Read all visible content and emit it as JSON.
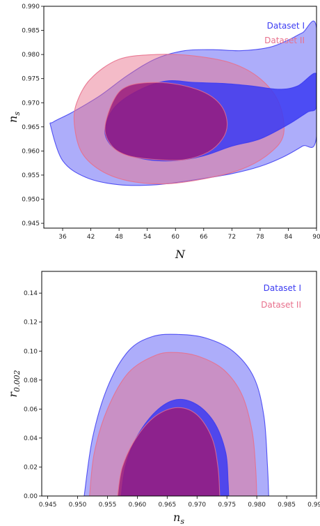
{
  "colors": {
    "dataset1": "#3b3bf2",
    "dataset2": "#e8708c",
    "overlap": "#9b1a78"
  },
  "chart_data": [
    {
      "type": "contour",
      "xlabel": "N",
      "ylabel": "n",
      "ylabel_sub": "s",
      "xlim": [
        32,
        90
      ],
      "ylim": [
        0.944,
        0.99
      ],
      "xticks": [
        "36",
        "42",
        "48",
        "54",
        "60",
        "66",
        "72",
        "78",
        "84",
        "90"
      ],
      "yticks": [
        "0.945",
        "0.950",
        "0.955",
        "0.960",
        "0.965",
        "0.970",
        "0.975",
        "0.980",
        "0.985",
        "0.990"
      ],
      "legend": {
        "position": "top-right",
        "entries": [
          "Dataset I",
          "Dataset II"
        ]
      },
      "series": [
        {
          "name": "Dataset I",
          "contours": [
            {
              "level": "95%",
              "points": [
                [
                  33.5,
                  0.965
                ],
                [
                  36,
                  0.958
                ],
                [
                  41,
                  0.9545
                ],
                [
                  48,
                  0.953
                ],
                [
                  56,
                  0.953
                ],
                [
                  64,
                  0.954
                ],
                [
                  72,
                  0.9553
                ],
                [
                  78,
                  0.9568
                ],
                [
                  83,
                  0.9588
                ],
                [
                  87,
                  0.961
                ],
                [
                  90,
                  0.963
                ],
                [
                  90,
                  0.9855
                ],
                [
                  87,
                  0.9845
                ],
                [
                  84,
                  0.983
                ],
                [
                  80,
                  0.9815
                ],
                [
                  74,
                  0.9808
                ],
                [
                  68,
                  0.981
                ],
                [
                  62,
                  0.9808
                ],
                [
                  56,
                  0.9792
                ],
                [
                  50,
                  0.9758
                ],
                [
                  44,
                  0.9715
                ],
                [
                  38,
                  0.968
                ],
                [
                  34,
                  0.966
                ]
              ]
            },
            {
              "level": "68%",
              "points": [
                [
                  45,
                  0.9645
                ],
                [
                  46,
                  0.9615
                ],
                [
                  49,
                  0.9595
                ],
                [
                  54,
                  0.9582
                ],
                [
                  60,
                  0.958
                ],
                [
                  66,
                  0.959
                ],
                [
                  72,
                  0.961
                ],
                [
                  78,
                  0.9625
                ],
                [
                  84,
                  0.9655
                ],
                [
                  88,
                  0.968
                ],
                [
                  90,
                  0.9692
                ],
                [
                  90,
                  0.976
                ],
                [
                  86,
                  0.9735
                ],
                [
                  82,
                  0.9728
                ],
                [
                  76,
                  0.9735
                ],
                [
                  70,
                  0.974
                ],
                [
                  64,
                  0.9742
                ],
                [
                  58,
                  0.9745
                ],
                [
                  52,
                  0.9725
                ],
                [
                  47,
                  0.969
                ]
              ]
            }
          ]
        },
        {
          "name": "Dataset II",
          "contours": [
            {
              "level": "95%",
              "points": [
                [
                  38.5,
                  0.9655
                ],
                [
                  40,
                  0.9598
                ],
                [
                  44,
                  0.956
                ],
                [
                  50,
                  0.9538
                ],
                [
                  58,
                  0.9532
                ],
                [
                  66,
                  0.9542
                ],
                [
                  74,
                  0.9562
                ],
                [
                  80,
                  0.9595
                ],
                [
                  83,
                  0.9635
                ],
                [
                  82,
                  0.97
                ],
                [
                  78,
                  0.975
                ],
                [
                  72,
                  0.9782
                ],
                [
                  64,
                  0.9797
                ],
                [
                  56,
                  0.98
                ],
                [
                  48,
                  0.979
                ],
                [
                  42,
                  0.975
                ],
                [
                  39,
                  0.97
                ]
              ]
            },
            {
              "level": "68%",
              "points": [
                [
                  45,
                  0.9648
                ],
                [
                  46.5,
                  0.961
                ],
                [
                  50,
                  0.959
                ],
                [
                  56,
                  0.9582
                ],
                [
                  62,
                  0.9582
                ],
                [
                  67,
                  0.9598
                ],
                [
                  70,
                  0.9625
                ],
                [
                  71,
                  0.9655
                ],
                [
                  70,
                  0.969
                ],
                [
                  67,
                  0.9717
                ],
                [
                  62,
                  0.9735
                ],
                [
                  56,
                  0.9742
                ],
                [
                  50,
                  0.9735
                ],
                [
                  47,
                  0.9708
                ]
              ]
            }
          ]
        }
      ]
    },
    {
      "type": "contour",
      "xlabel": "n",
      "xlabel_sub": "s",
      "ylabel": "r",
      "ylabel_sub": "0.002",
      "xlim": [
        0.944,
        0.99
      ],
      "ylim": [
        0.0,
        0.155
      ],
      "xticks": [
        "0.945",
        "0.950",
        "0.955",
        "0.960",
        "0.965",
        "0.970",
        "0.975",
        "0.980",
        "0.985",
        "0.990"
      ],
      "yticks": [
        "0.00",
        "0.02",
        "0.04",
        "0.06",
        "0.08",
        "0.10",
        "0.12",
        "0.14"
      ],
      "legend": {
        "position": "top-right",
        "entries": [
          "Dataset I",
          "Dataset II"
        ]
      },
      "series": [
        {
          "name": "Dataset I",
          "contours": [
            {
              "level": "95%",
              "points": [
                [
                  0.9511,
                  0.0
                ],
                [
                  0.9525,
                  0.04
                ],
                [
                  0.955,
                  0.075
                ],
                [
                  0.9585,
                  0.1
                ],
                [
                  0.9625,
                  0.11
                ],
                [
                  0.967,
                  0.1115
                ],
                [
                  0.9715,
                  0.109
                ],
                [
                  0.976,
                  0.1
                ],
                [
                  0.9795,
                  0.082
                ],
                [
                  0.9812,
                  0.055
                ],
                [
                  0.9818,
                  0.02
                ],
                [
                  0.982,
                  0.0
                ]
              ]
            },
            {
              "level": "68%",
              "points": [
                [
                  0.9573,
                  0.0
                ],
                [
                  0.958,
                  0.02
                ],
                [
                  0.9598,
                  0.04
                ],
                [
                  0.963,
                  0.058
                ],
                [
                  0.9665,
                  0.0665
                ],
                [
                  0.97,
                  0.063
                ],
                [
                  0.973,
                  0.05
                ],
                [
                  0.9748,
                  0.03
                ],
                [
                  0.9752,
                  0.01
                ],
                [
                  0.9753,
                  0.0
                ]
              ]
            }
          ]
        },
        {
          "name": "Dataset II",
          "contours": [
            {
              "level": "95%",
              "points": [
                [
                  0.952,
                  0.0
                ],
                [
                  0.9528,
                  0.03
                ],
                [
                  0.955,
                  0.06
                ],
                [
                  0.9585,
                  0.085
                ],
                [
                  0.963,
                  0.097
                ],
                [
                  0.9665,
                  0.099
                ],
                [
                  0.9705,
                  0.096
                ],
                [
                  0.9745,
                  0.087
                ],
                [
                  0.9775,
                  0.07
                ],
                [
                  0.9792,
                  0.045
                ],
                [
                  0.9798,
                  0.02
                ],
                [
                  0.98,
                  0.0
                ]
              ]
            },
            {
              "level": "68%",
              "points": [
                [
                  0.9567,
                  0.0
                ],
                [
                  0.9575,
                  0.02
                ],
                [
                  0.9598,
                  0.04
                ],
                [
                  0.963,
                  0.055
                ],
                [
                  0.9667,
                  0.061
                ],
                [
                  0.97,
                  0.056
                ],
                [
                  0.9725,
                  0.04
                ],
                [
                  0.9735,
                  0.02
                ],
                [
                  0.9738,
                  0.0
                ]
              ]
            }
          ]
        }
      ]
    }
  ]
}
